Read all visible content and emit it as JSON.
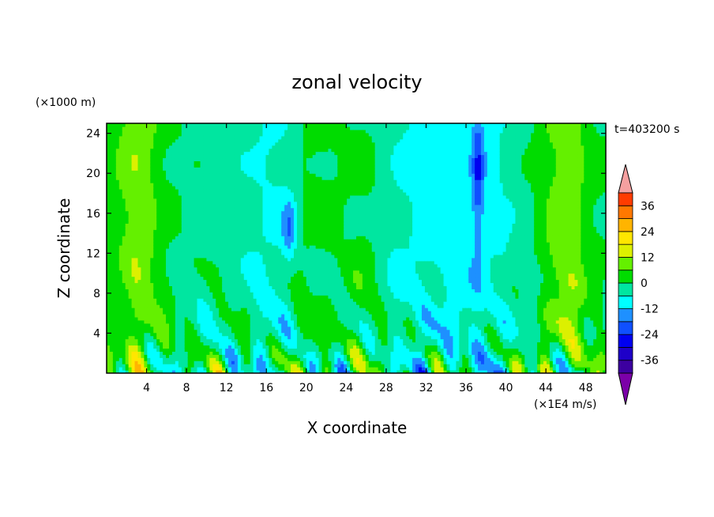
{
  "chart_data": {
    "type": "heatmap",
    "title": "zonal velocity",
    "xlabel": "X coordinate",
    "ylabel": "Z coordinate",
    "y_unit_label": "(×1000 m)",
    "colorbar_unit_label": "(×1E4 m/s)",
    "time_label": "t=403200 s",
    "xlim": [
      0,
      50
    ],
    "ylim": [
      0,
      25
    ],
    "x_ticks": [
      4,
      8,
      12,
      16,
      20,
      24,
      28,
      32,
      36,
      40,
      44,
      48
    ],
    "y_ticks": [
      4,
      8,
      12,
      16,
      20,
      24
    ],
    "color_levels": [
      -42,
      -36,
      -30,
      -24,
      -18,
      -12,
      -6,
      0,
      6,
      12,
      18,
      24,
      30,
      36,
      42
    ],
    "colorbar_ticks": [
      36,
      24,
      12,
      0,
      -12,
      -24,
      -36
    ],
    "colorscale": [
      "#7b00a8",
      "#3c00a0",
      "#1e00c8",
      "#0000f0",
      "#0f50ff",
      "#1e90ff",
      "#00ffff",
      "#00e6a0",
      "#00dc00",
      "#64f000",
      "#dcf000",
      "#ffe600",
      "#ffb400",
      "#ff7800",
      "#ff3c00",
      "#e10000",
      "#f5a0a0"
    ],
    "grid": false
  }
}
